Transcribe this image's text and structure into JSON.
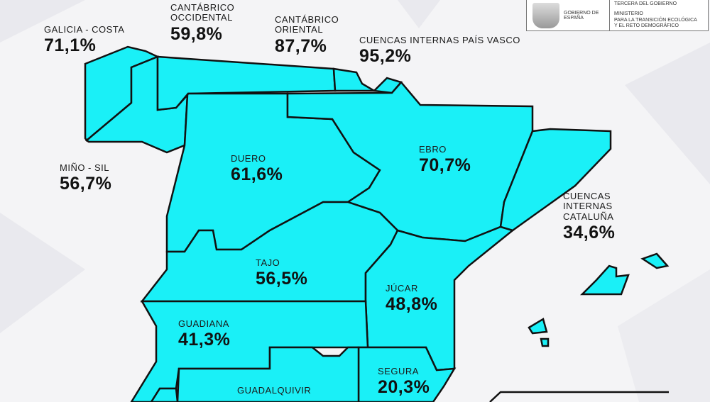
{
  "colors": {
    "region_fill": "#1af0f7",
    "border": "#111111",
    "background": "#f4f4f6"
  },
  "logo": {
    "gov": "GOBIERNO DE ESPAÑA",
    "top": "TERCERA DEL GOBIERNO",
    "ministry_1": "MINISTERIO",
    "ministry_2": "PARA LA TRANSICIÓN ECOLÓGICA",
    "ministry_3": "Y EL RETO DEMOGRÁFICO",
    "icon": "coat-of-arms"
  },
  "basins": [
    {
      "name": "GALICIA - COSTA",
      "value": "71,1%"
    },
    {
      "name": "CANTÁBRICO OCCIDENTAL",
      "value": "59,8%"
    },
    {
      "name": "CANTÁBRICO ORIENTAL",
      "value": "87,7%"
    },
    {
      "name": "CUENCAS INTERNAS PAÍS VASCO",
      "value": "95,2%"
    },
    {
      "name": "MIÑO - SIL",
      "value": "56,7%"
    },
    {
      "name": "DUERO",
      "value": "61,6%"
    },
    {
      "name": "EBRO",
      "value": "70,7%"
    },
    {
      "name": "CUENCAS INTERNAS CATALUÑA",
      "value": "34,6%"
    },
    {
      "name": "TAJO",
      "value": "56,5%"
    },
    {
      "name": "JÚCAR",
      "value": "48,8%"
    },
    {
      "name": "GUADIANA",
      "value": "41,3%"
    },
    {
      "name": "SEGURA",
      "value": "20,3%"
    },
    {
      "name": "GUADALQUIVIR",
      "value": ""
    }
  ]
}
